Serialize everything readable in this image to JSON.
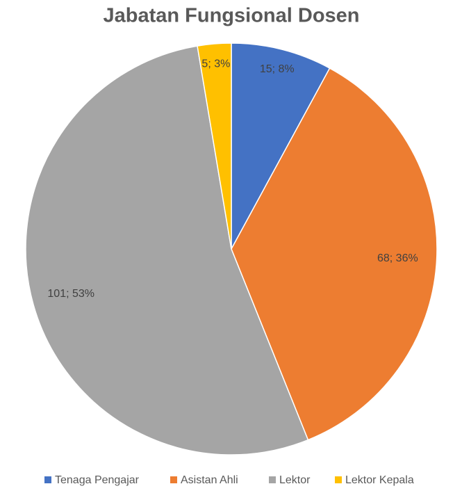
{
  "chart_data": {
    "type": "pie",
    "title": "Jabatan Fungsional Dosen",
    "categories": [
      "Tenaga Pengajar",
      "Asistan Ahli",
      "Lektor",
      "Lektor Kepala"
    ],
    "values": [
      15,
      68,
      101,
      5
    ],
    "value_labels": [
      "15; 8%",
      "68; 36%",
      "101; 53%",
      "5; 3%"
    ],
    "colors": [
      "#4472c4",
      "#ed7d31",
      "#a5a5a5",
      "#ffc000"
    ],
    "legend": "bottom"
  }
}
